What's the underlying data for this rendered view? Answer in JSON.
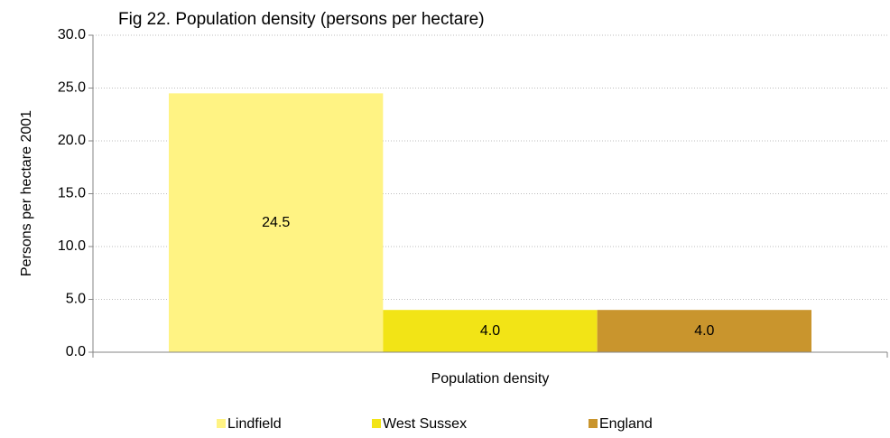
{
  "chart_data": {
    "type": "bar",
    "title": "Fig 22. Population density (persons per hectare)",
    "y_label": "Persons per hectare 2001",
    "x_label": "Population density",
    "categories": [
      "Population density"
    ],
    "series": [
      {
        "name": "Lindfield",
        "color": "#fff383",
        "values": [
          24.5
        ],
        "value_labels": [
          "24.5"
        ]
      },
      {
        "name": "West Sussex",
        "color": "#f2e416",
        "values": [
          4.0
        ],
        "value_labels": [
          "4.0"
        ]
      },
      {
        "name": "England",
        "color": "#c9952d",
        "values": [
          4.0
        ],
        "value_labels": [
          "4.0"
        ]
      }
    ],
    "ylim": [
      0,
      30
    ],
    "yticks": [
      {
        "value": 0,
        "label": "0.0"
      },
      {
        "value": 5,
        "label": "5.0"
      },
      {
        "value": 10,
        "label": "10.0"
      },
      {
        "value": 15,
        "label": "15.0"
      },
      {
        "value": 20,
        "label": "20.0"
      },
      {
        "value": 25,
        "label": "25.0"
      },
      {
        "value": 30,
        "label": "30.0"
      }
    ],
    "grid": true,
    "legend": "bottom"
  }
}
